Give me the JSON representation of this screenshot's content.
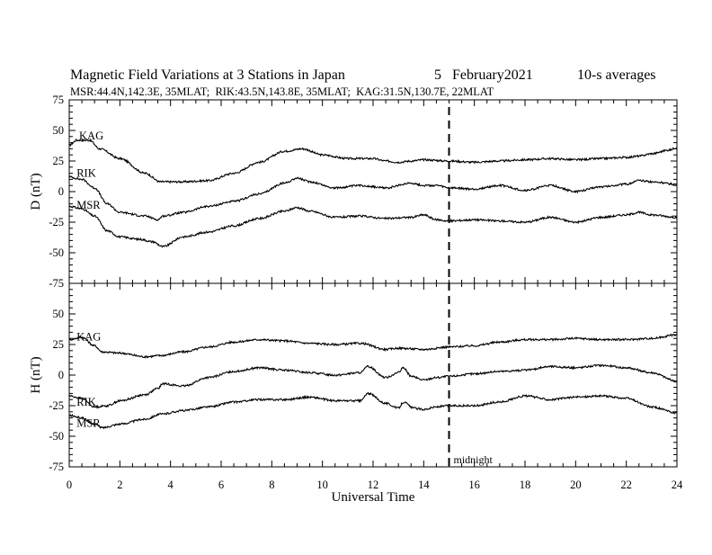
{
  "chart_data": {
    "type": "line",
    "title": "Magnetic Field Variations at 3 Stations in Japan",
    "date": "5   February2021",
    "averaging": "10-s averages",
    "stations_line": "MSR:44.4N,142.3E, 35MLAT;  RIK:43.5N,143.8E, 35MLAT;  KAG:31.5N,130.7E, 22MLAT",
    "xlabel": "Universal Time",
    "xlim": [
      0,
      24
    ],
    "xticks": [
      0,
      2,
      4,
      6,
      8,
      10,
      12,
      14,
      16,
      18,
      20,
      22,
      24
    ],
    "marker": {
      "x": 15,
      "label": "midnight"
    },
    "panels": [
      {
        "ylabel": "D (nT)",
        "ylim": [
          -75,
          75
        ],
        "yticks": [
          75,
          50,
          25,
          0,
          -25,
          -50,
          -75
        ],
        "series": [
          {
            "name": "KAG",
            "x": [
              0,
              0.3,
              0.8,
              1.2,
              2,
              3,
              3.6,
              4.5,
              5.5,
              6.5,
              7.5,
              8.5,
              9.2,
              10,
              11,
              12,
              12.5,
              13,
              13.5,
              14,
              15,
              16,
              17,
              18,
              19,
              20,
              21,
              22,
              22.5,
              23,
              23.7,
              24
            ],
            "y": [
              38,
              42,
              42,
              35,
              27,
              15,
              8,
              8,
              9,
              15,
              24,
              33,
              35,
              30,
              27,
              27,
              25,
              24,
              25,
              26,
              25,
              24,
              25,
              26,
              27,
              26,
              27,
              28,
              29,
              31,
              34,
              36
            ]
          },
          {
            "name": "RIK",
            "x": [
              0,
              0.5,
              1,
              1.5,
              2,
              3,
              3.5,
              3.7,
              4.5,
              5.5,
              6.5,
              7.5,
              8.5,
              9,
              9.5,
              10.5,
              11.5,
              12.5,
              13.5,
              14,
              14.5,
              15,
              16,
              17,
              18,
              19,
              20,
              21,
              22,
              22.5,
              23,
              24
            ],
            "y": [
              12,
              10,
              3,
              -10,
              -17,
              -20,
              -23,
              -20,
              -17,
              -12,
              -8,
              -2,
              7,
              11,
              8,
              3,
              5,
              3,
              7,
              5,
              5,
              3,
              2,
              5,
              1,
              5,
              0,
              4,
              6,
              9,
              8,
              6
            ]
          },
          {
            "name": "MSR",
            "x": [
              0,
              0.5,
              1,
              1.5,
              2,
              2.8,
              3.3,
              3.7,
              4.5,
              5.5,
              6.5,
              7.5,
              8.5,
              9,
              9.5,
              10.5,
              11.5,
              12.5,
              13.5,
              14,
              14.5,
              15,
              16,
              17,
              18,
              19,
              20,
              21,
              22,
              22.5,
              23,
              24
            ],
            "y": [
              -12,
              -14,
              -20,
              -32,
              -37,
              -39,
              -41,
              -45,
              -37,
              -33,
              -28,
              -22,
              -16,
              -13,
              -16,
              -21,
              -20,
              -22,
              -21,
              -19,
              -23,
              -24,
              -23,
              -24,
              -25,
              -21,
              -25,
              -21,
              -19,
              -17,
              -19,
              -21
            ]
          }
        ]
      },
      {
        "ylabel": "H (nT)",
        "ylim": [
          -75,
          75
        ],
        "yticks": [
          75,
          50,
          25,
          0,
          -25,
          -50,
          -75
        ],
        "series": [
          {
            "name": "KAG",
            "x": [
              0,
              0.5,
              1,
              1.3,
              2,
              3,
              3.6,
              4.5,
              5.5,
              6.5,
              7.5,
              8.5,
              9.5,
              10.5,
              11.5,
              12.5,
              13,
              14,
              15,
              16,
              17,
              18,
              19,
              20,
              21,
              22,
              23,
              24
            ],
            "y": [
              29,
              31,
              24,
              19,
              18,
              15,
              16,
              19,
              23,
              27,
              29,
              28,
              26,
              25,
              26,
              21,
              22,
              21,
              23,
              24,
              27,
              29,
              29,
              30,
              29,
              29,
              30,
              33
            ]
          },
          {
            "name": "RIK",
            "x": [
              0,
              0.5,
              1,
              1.5,
              2,
              3,
              3.5,
              3.7,
              4.5,
              5.5,
              6.5,
              7.5,
              8.5,
              9.5,
              10.5,
              11.5,
              11.8,
              12.5,
              13,
              13.2,
              13.5,
              14,
              14.5,
              15,
              16,
              17,
              18,
              19,
              20,
              21,
              22,
              23,
              24
            ],
            "y": [
              -17,
              -19,
              -26,
              -25,
              -21,
              -16,
              -11,
              -7,
              -9,
              -2,
              3,
              6,
              4,
              2,
              0,
              2,
              7,
              -2,
              2,
              6,
              -1,
              -4,
              -2,
              -1,
              1,
              3,
              4,
              7,
              6,
              8,
              6,
              2,
              -5
            ]
          },
          {
            "name": "MSR",
            "x": [
              0,
              0.5,
              1,
              1.3,
              2,
              3,
              3.6,
              4.5,
              5.5,
              6.5,
              7.5,
              8.5,
              9.5,
              10.5,
              11.5,
              11.8,
              12.5,
              13,
              13.2,
              13.6,
              14,
              14.5,
              15,
              16,
              17,
              18,
              19,
              20,
              21,
              22,
              23,
              24
            ],
            "y": [
              -33,
              -35,
              -40,
              -43,
              -40,
              -36,
              -32,
              -29,
              -26,
              -22,
              -20,
              -20,
              -18,
              -21,
              -21,
              -15,
              -23,
              -27,
              -22,
              -27,
              -28,
              -26,
              -25,
              -25,
              -22,
              -17,
              -20,
              -18,
              -17,
              -19,
              -26,
              -31
            ]
          }
        ]
      }
    ]
  }
}
